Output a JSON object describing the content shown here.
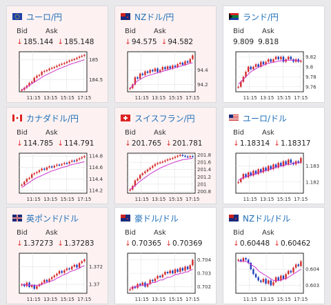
{
  "labels": {
    "bid": "Bid",
    "ask": "Ask"
  },
  "colors": {
    "down_bg": "#fdf1f1",
    "title": "#1f6fb8",
    "up": "#d42a2a",
    "down": "#1e3fbf",
    "ma": "#cc33cc"
  },
  "cards": [
    {
      "title": "ユーロ/円",
      "flag": "eu",
      "bid": "185.144",
      "ask": "185.148",
      "arrow": "↓",
      "bg": "down",
      "x_ticks": [
        "11:15",
        "13:15",
        "15:15",
        "17:15"
      ],
      "y_ticks": [
        "185",
        "184.5"
      ],
      "chart_data": {
        "type": "candlestick",
        "ylim": [
          184.2,
          185.2
        ],
        "close": [
          184.25,
          184.3,
          184.35,
          184.42,
          184.45,
          184.55,
          184.6,
          184.62,
          184.7,
          184.72,
          184.74,
          184.78,
          184.8,
          184.82,
          184.85,
          184.88,
          184.9,
          184.92,
          184.95,
          184.98,
          185.0,
          185.02,
          185.05,
          185.08,
          185.1,
          185.12
        ],
        "ma": [
          184.25,
          184.28,
          184.32,
          184.36,
          184.4,
          184.44,
          184.48,
          184.52,
          184.56,
          184.6,
          184.63,
          184.66,
          184.69,
          184.72,
          184.75,
          184.78,
          184.8,
          184.83,
          184.85,
          184.88,
          184.9,
          184.92,
          184.94,
          184.96,
          184.98,
          185.0
        ]
      }
    },
    {
      "title": "NZドル/円",
      "flag": "nz",
      "bid": "94.575",
      "ask": "94.582",
      "arrow": "↓",
      "bg": "down",
      "x_ticks": [
        "11:15",
        "13:15",
        "15:15",
        "17:15"
      ],
      "y_ticks": [
        "94.4",
        "94.2"
      ],
      "chart_data": {
        "type": "candlestick",
        "ylim": [
          94.1,
          94.65
        ],
        "close": [
          94.15,
          94.2,
          94.3,
          94.28,
          94.35,
          94.33,
          94.38,
          94.36,
          94.4,
          94.38,
          94.42,
          94.37,
          94.4,
          94.44,
          94.41,
          94.45,
          94.42,
          94.46,
          94.44,
          94.48,
          94.5,
          94.47,
          94.52,
          94.5,
          94.55,
          94.6
        ],
        "ma": [
          94.15,
          94.18,
          94.22,
          94.25,
          94.27,
          94.29,
          94.31,
          94.32,
          94.33,
          94.34,
          94.35,
          94.36,
          94.37,
          94.38,
          94.39,
          94.4,
          94.41,
          94.42,
          94.43,
          94.44,
          94.45,
          94.46,
          94.47,
          94.48,
          94.49,
          94.5
        ]
      }
    },
    {
      "title": "ランド/円",
      "flag": "za",
      "bid": "9.809",
      "ask": "9.818",
      "arrow": "",
      "bg": "up",
      "x_ticks": [
        "11:15",
        "13:15",
        "15:15",
        "17:15"
      ],
      "y_ticks": [
        "9.82",
        "9.8",
        "9.78",
        "9.76"
      ],
      "chart_data": {
        "type": "candlestick",
        "ylim": [
          9.75,
          9.83
        ],
        "close": [
          9.76,
          9.77,
          9.78,
          9.79,
          9.8,
          9.795,
          9.8,
          9.805,
          9.8,
          9.81,
          9.805,
          9.81,
          9.815,
          9.81,
          9.815,
          9.82,
          9.815,
          9.82,
          9.81,
          9.815,
          9.82,
          9.815,
          9.81,
          9.815,
          9.81,
          9.812
        ],
        "ma": [
          9.765,
          9.77,
          9.775,
          9.78,
          9.785,
          9.79,
          9.793,
          9.796,
          9.799,
          9.801,
          9.803,
          9.805,
          9.807,
          9.808,
          9.809,
          9.81,
          9.811,
          9.812,
          9.812,
          9.813,
          9.813,
          9.813,
          9.813,
          9.813,
          9.812,
          9.812
        ]
      }
    },
    {
      "title": "カナダドル/円",
      "flag": "ca",
      "bid": "114.785",
      "ask": "114.791",
      "arrow": "↓",
      "bg": "down",
      "x_ticks": [
        "11:15",
        "13:15",
        "15:15",
        "17:15"
      ],
      "y_ticks": [
        "114.8",
        "114.6",
        "114.4",
        "114.2"
      ],
      "chart_data": {
        "type": "candlestick",
        "ylim": [
          114.15,
          114.85
        ],
        "close": [
          114.3,
          114.35,
          114.4,
          114.42,
          114.48,
          114.5,
          114.52,
          114.55,
          114.58,
          114.56,
          114.6,
          114.62,
          114.6,
          114.63,
          114.65,
          114.64,
          114.66,
          114.68,
          114.67,
          114.7,
          114.72,
          114.71,
          114.74,
          114.76,
          114.78,
          114.8
        ],
        "ma": [
          114.25,
          114.28,
          114.31,
          114.34,
          114.37,
          114.4,
          114.42,
          114.44,
          114.46,
          114.48,
          114.5,
          114.52,
          114.54,
          114.55,
          114.57,
          114.58,
          114.6,
          114.61,
          114.62,
          114.64,
          114.65,
          114.66,
          114.67,
          114.68,
          114.69,
          114.7
        ]
      }
    },
    {
      "title": "スイスフラン/円",
      "flag": "ch",
      "bid": "201.765",
      "ask": "201.781",
      "arrow": "↓",
      "bg": "down",
      "x_ticks": [
        "11:15",
        "13:15",
        "15:15",
        "17:15"
      ],
      "y_ticks": [
        "201.8",
        "201.6",
        "201.4",
        "201.2",
        "201",
        "200.8"
      ],
      "chart_data": {
        "type": "candlestick",
        "ylim": [
          200.75,
          201.85
        ],
        "close": [
          200.85,
          200.95,
          201.1,
          201.15,
          201.25,
          201.3,
          201.35,
          201.4,
          201.45,
          201.5,
          201.55,
          201.58,
          201.6,
          201.62,
          201.65,
          201.68,
          201.7,
          201.72,
          201.75,
          201.78,
          201.8,
          201.78,
          201.76,
          201.75,
          201.77,
          201.76
        ],
        "ma": [
          200.85,
          200.9,
          200.96,
          201.02,
          201.08,
          201.13,
          201.18,
          201.23,
          201.28,
          201.32,
          201.36,
          201.4,
          201.44,
          201.47,
          201.5,
          201.53,
          201.56,
          201.58,
          201.61,
          201.63,
          201.65,
          201.67,
          201.68,
          201.69,
          201.7,
          201.71
        ]
      }
    },
    {
      "title": "ユーロ/ドル",
      "flag": "us",
      "bid": "1.18314",
      "ask": "1.18317",
      "arrow": "↓",
      "bg": "up",
      "x_ticks": [
        "11:15",
        "13:15",
        "15:15",
        "17:15"
      ],
      "y_ticks": [
        "1.183",
        "1.182"
      ],
      "chart_data": {
        "type": "candlestick",
        "ylim": [
          1.1813,
          1.1838
        ],
        "close": [
          1.182,
          1.1822,
          1.1825,
          1.1823,
          1.1826,
          1.1824,
          1.1827,
          1.1825,
          1.1828,
          1.1826,
          1.1829,
          1.1827,
          1.183,
          1.1828,
          1.1831,
          1.1829,
          1.1832,
          1.183,
          1.1833,
          1.1831,
          1.1834,
          1.1832,
          1.1831,
          1.1833,
          1.1832,
          1.1835
        ],
        "ma": [
          1.1821,
          1.1822,
          1.1823,
          1.1823,
          1.1824,
          1.1824,
          1.1825,
          1.1825,
          1.1826,
          1.1826,
          1.1827,
          1.1827,
          1.1828,
          1.1828,
          1.1829,
          1.1829,
          1.183,
          1.183,
          1.183,
          1.1831,
          1.1831,
          1.1831,
          1.1832,
          1.1832,
          1.1832,
          1.1832
        ]
      }
    },
    {
      "title": "英ポンド/ドル",
      "flag": "gb",
      "bid": "1.37273",
      "ask": "1.37283",
      "arrow": "↓",
      "bg": "down",
      "x_ticks": [
        "11:15",
        "13:15",
        "15:15",
        "17:15"
      ],
      "y_ticks": [
        "1.372",
        "1.37"
      ],
      "chart_data": {
        "type": "candlestick",
        "ylim": [
          1.369,
          1.3735
        ],
        "close": [
          1.37,
          1.3698,
          1.3702,
          1.3697,
          1.3699,
          1.3695,
          1.3698,
          1.37,
          1.3702,
          1.3705,
          1.3703,
          1.3706,
          1.3708,
          1.371,
          1.3712,
          1.3715,
          1.3713,
          1.3716,
          1.3718,
          1.3717,
          1.372,
          1.3722,
          1.3719,
          1.3724,
          1.3726,
          1.3728
        ],
        "ma": [
          1.37,
          1.37,
          1.3699,
          1.3699,
          1.3699,
          1.3699,
          1.3699,
          1.3699,
          1.37,
          1.3701,
          1.3702,
          1.3703,
          1.3704,
          1.3705,
          1.3707,
          1.3708,
          1.371,
          1.3711,
          1.3712,
          1.3714,
          1.3715,
          1.3716,
          1.3717,
          1.3718,
          1.372,
          1.3721
        ]
      }
    },
    {
      "title": "豪ドル/ドル",
      "flag": "au",
      "bid": "0.70365",
      "ask": "0.70369",
      "arrow": "↓",
      "bg": "up",
      "x_ticks": [
        "11:15",
        "13:15",
        "15:15",
        "17:15"
      ],
      "y_ticks": [
        "0.704",
        "0.703",
        "0.702"
      ],
      "chart_data": {
        "type": "candlestick",
        "ylim": [
          0.7015,
          0.7045
        ],
        "close": [
          0.7018,
          0.702,
          0.7019,
          0.7022,
          0.7021,
          0.7023,
          0.702,
          0.7022,
          0.7025,
          0.7024,
          0.7026,
          0.7028,
          0.7027,
          0.7029,
          0.7031,
          0.703,
          0.7032,
          0.703,
          0.7033,
          0.7031,
          0.7034,
          0.7032,
          0.7035,
          0.7033,
          0.7036,
          0.704
        ],
        "ma": [
          0.7019,
          0.7019,
          0.702,
          0.702,
          0.7021,
          0.7021,
          0.7021,
          0.7022,
          0.7022,
          0.7023,
          0.7023,
          0.7024,
          0.7025,
          0.7025,
          0.7026,
          0.7027,
          0.7027,
          0.7028,
          0.7029,
          0.7029,
          0.703,
          0.703,
          0.7031,
          0.7031,
          0.7032,
          0.7033
        ]
      }
    },
    {
      "title": "NZドル/ドル",
      "flag": "nz",
      "bid": "0.60448",
      "ask": "0.60462",
      "arrow": "↓",
      "bg": "up",
      "x_ticks": [
        "11:15",
        "13:15",
        "15:15",
        "17:15"
      ],
      "y_ticks": [
        "0.604",
        "0.603"
      ],
      "chart_data": {
        "type": "candlestick",
        "ylim": [
          0.6025,
          0.605
        ],
        "close": [
          0.6046,
          0.6045,
          0.6047,
          0.6046,
          0.6044,
          0.604,
          0.6037,
          0.6035,
          0.6033,
          0.6032,
          0.6034,
          0.6031,
          0.6033,
          0.603,
          0.6032,
          0.6035,
          0.6033,
          0.6036,
          0.6034,
          0.6037,
          0.6039,
          0.6038,
          0.6041,
          0.6043,
          0.6042,
          0.6045
        ],
        "ma": [
          0.6045,
          0.6045,
          0.6045,
          0.6045,
          0.6044,
          0.6043,
          0.6042,
          0.6041,
          0.6039,
          0.6038,
          0.6037,
          0.6036,
          0.6035,
          0.6034,
          0.6033,
          0.6033,
          0.6033,
          0.6033,
          0.6034,
          0.6034,
          0.6035,
          0.6036,
          0.6037,
          0.6038,
          0.6039,
          0.604
        ]
      }
    }
  ]
}
